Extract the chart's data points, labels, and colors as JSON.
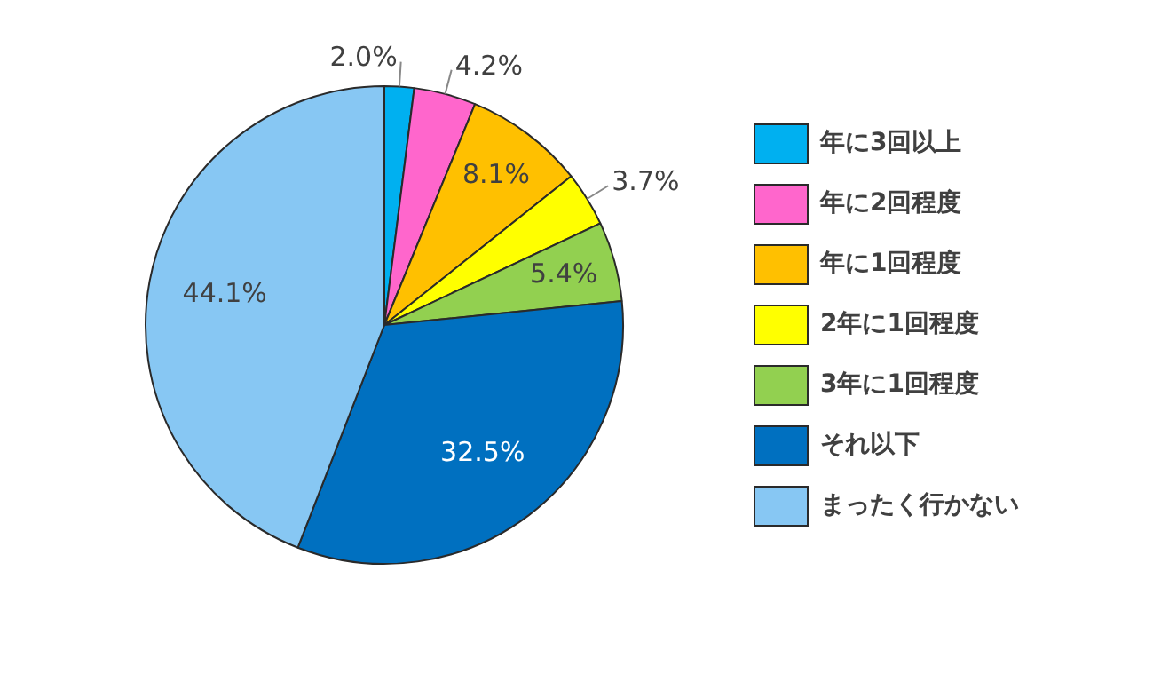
{
  "chart_data": {
    "type": "pie",
    "categories": [
      "年に3回以上",
      "年に2回程度",
      "年に1回程度",
      "2年に1回程度",
      "3年に1回程度",
      "それ以下",
      "まったく行かない"
    ],
    "values": [
      2.0,
      4.2,
      8.1,
      3.7,
      5.4,
      32.5,
      44.1
    ],
    "value_labels": [
      "2.0%",
      "4.2%",
      "8.1%",
      "3.7%",
      "5.4%",
      "32.5%",
      "44.1%"
    ],
    "colors": [
      "#00b0f0",
      "#ff66cc",
      "#ffc000",
      "#ffff00",
      "#92d050",
      "#0070c0",
      "#87c7f3"
    ],
    "legend": "right"
  }
}
